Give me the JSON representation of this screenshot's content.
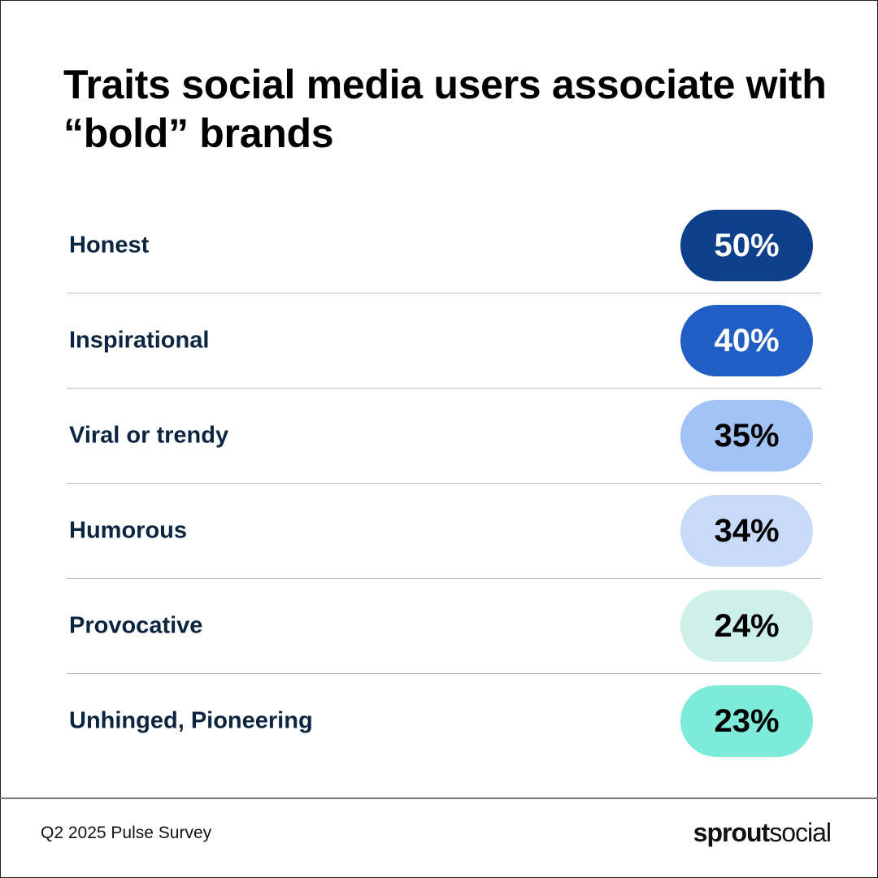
{
  "header": {
    "title": "Traits social media users associate with “bold” brands"
  },
  "rows": [
    {
      "label": "Honest",
      "value": "50%",
      "bg": "#0e3f8a",
      "fg": "#ffffff"
    },
    {
      "label": "Inspirational",
      "value": "40%",
      "bg": "#205ec5",
      "fg": "#ffffff"
    },
    {
      "label": "Viral or trendy",
      "value": "35%",
      "bg": "#a1c3f5",
      "fg": "#000000"
    },
    {
      "label": "Humorous",
      "value": "34%",
      "bg": "#c7daf7",
      "fg": "#000000"
    },
    {
      "label": "Provocative",
      "value": "24%",
      "bg": "#cdf0e9",
      "fg": "#000000"
    },
    {
      "label": "Unhinged, Pioneering",
      "value": "23%",
      "bg": "#7eeada",
      "fg": "#000000"
    }
  ],
  "footer": {
    "source": "Q2 2025 Pulse Survey",
    "logo_bold": "sprout",
    "logo_light": "social"
  },
  "chart_data": {
    "type": "table",
    "title": "Traits social media users associate with “bold” brands",
    "categories": [
      "Honest",
      "Inspirational",
      "Viral or trendy",
      "Humorous",
      "Provocative",
      "Unhinged, Pioneering"
    ],
    "values": [
      50,
      40,
      35,
      34,
      24,
      23
    ],
    "unit": "%",
    "source": "Q2 2025 Pulse Survey"
  }
}
